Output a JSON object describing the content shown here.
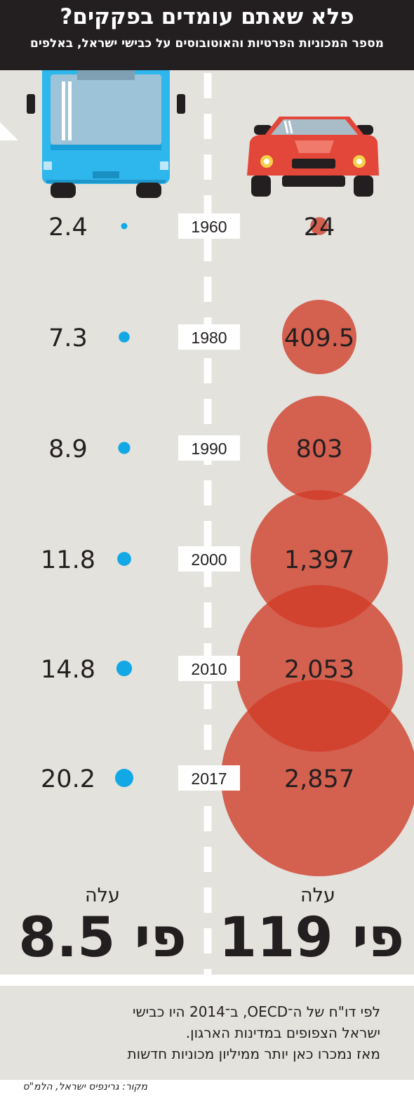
{
  "header": {
    "title": "פלא שאתם עומדים בפקקים?",
    "subtitle": "מספר המכוניות הפרטיות והאוטובוסים על כבישי ישראל, באלפים"
  },
  "chart_data": {
    "type": "bubble",
    "title": "פלא שאתם עומדים בפקקים?",
    "subtitle": "מספר המכוניות הפרטיות והאוטובוסים על כבישי ישראל, באלפים",
    "categories": [
      "1960",
      "1980",
      "1990",
      "2000",
      "2010",
      "2017"
    ],
    "series": [
      {
        "name": "cars",
        "values": [
          24,
          409.5,
          803,
          1397,
          2053,
          2857
        ],
        "labels": [
          "24",
          "409.5",
          "803",
          "1,397",
          "2,053",
          "2,857"
        ]
      },
      {
        "name": "buses",
        "values": [
          2.4,
          7.3,
          8.9,
          11.8,
          14.8,
          20.2
        ],
        "labels": [
          "2.4",
          "7.3",
          "8.9",
          "11.8",
          "14.8",
          "20.2"
        ]
      }
    ],
    "growth": {
      "cars": {
        "word": "עלה",
        "value": "פי 119"
      },
      "buses": {
        "word": "עלה",
        "value": "פי 8.5"
      }
    }
  },
  "note": {
    "lines": [
      "לפי דו\"ח של ה־OECD, ב־2014 היו כבישי",
      "ישראל הצפופים במדינות הארגון.",
      "מאז נמכרו כאן יותר ממיליון מכוניות חדשות"
    ]
  },
  "source": "מקור: גרינפיס ישראל, הלמ\"ס",
  "colors": {
    "car_bubble": "#cf3b27",
    "bus_dot": "#12a8e6",
    "road_bg": "#e3e2dd",
    "header_bg": "#231f20",
    "bus_body": "#2eb7ec",
    "car_body": "#e3473a"
  },
  "icons": {
    "bus": "bus-icon",
    "car": "car-icon"
  }
}
